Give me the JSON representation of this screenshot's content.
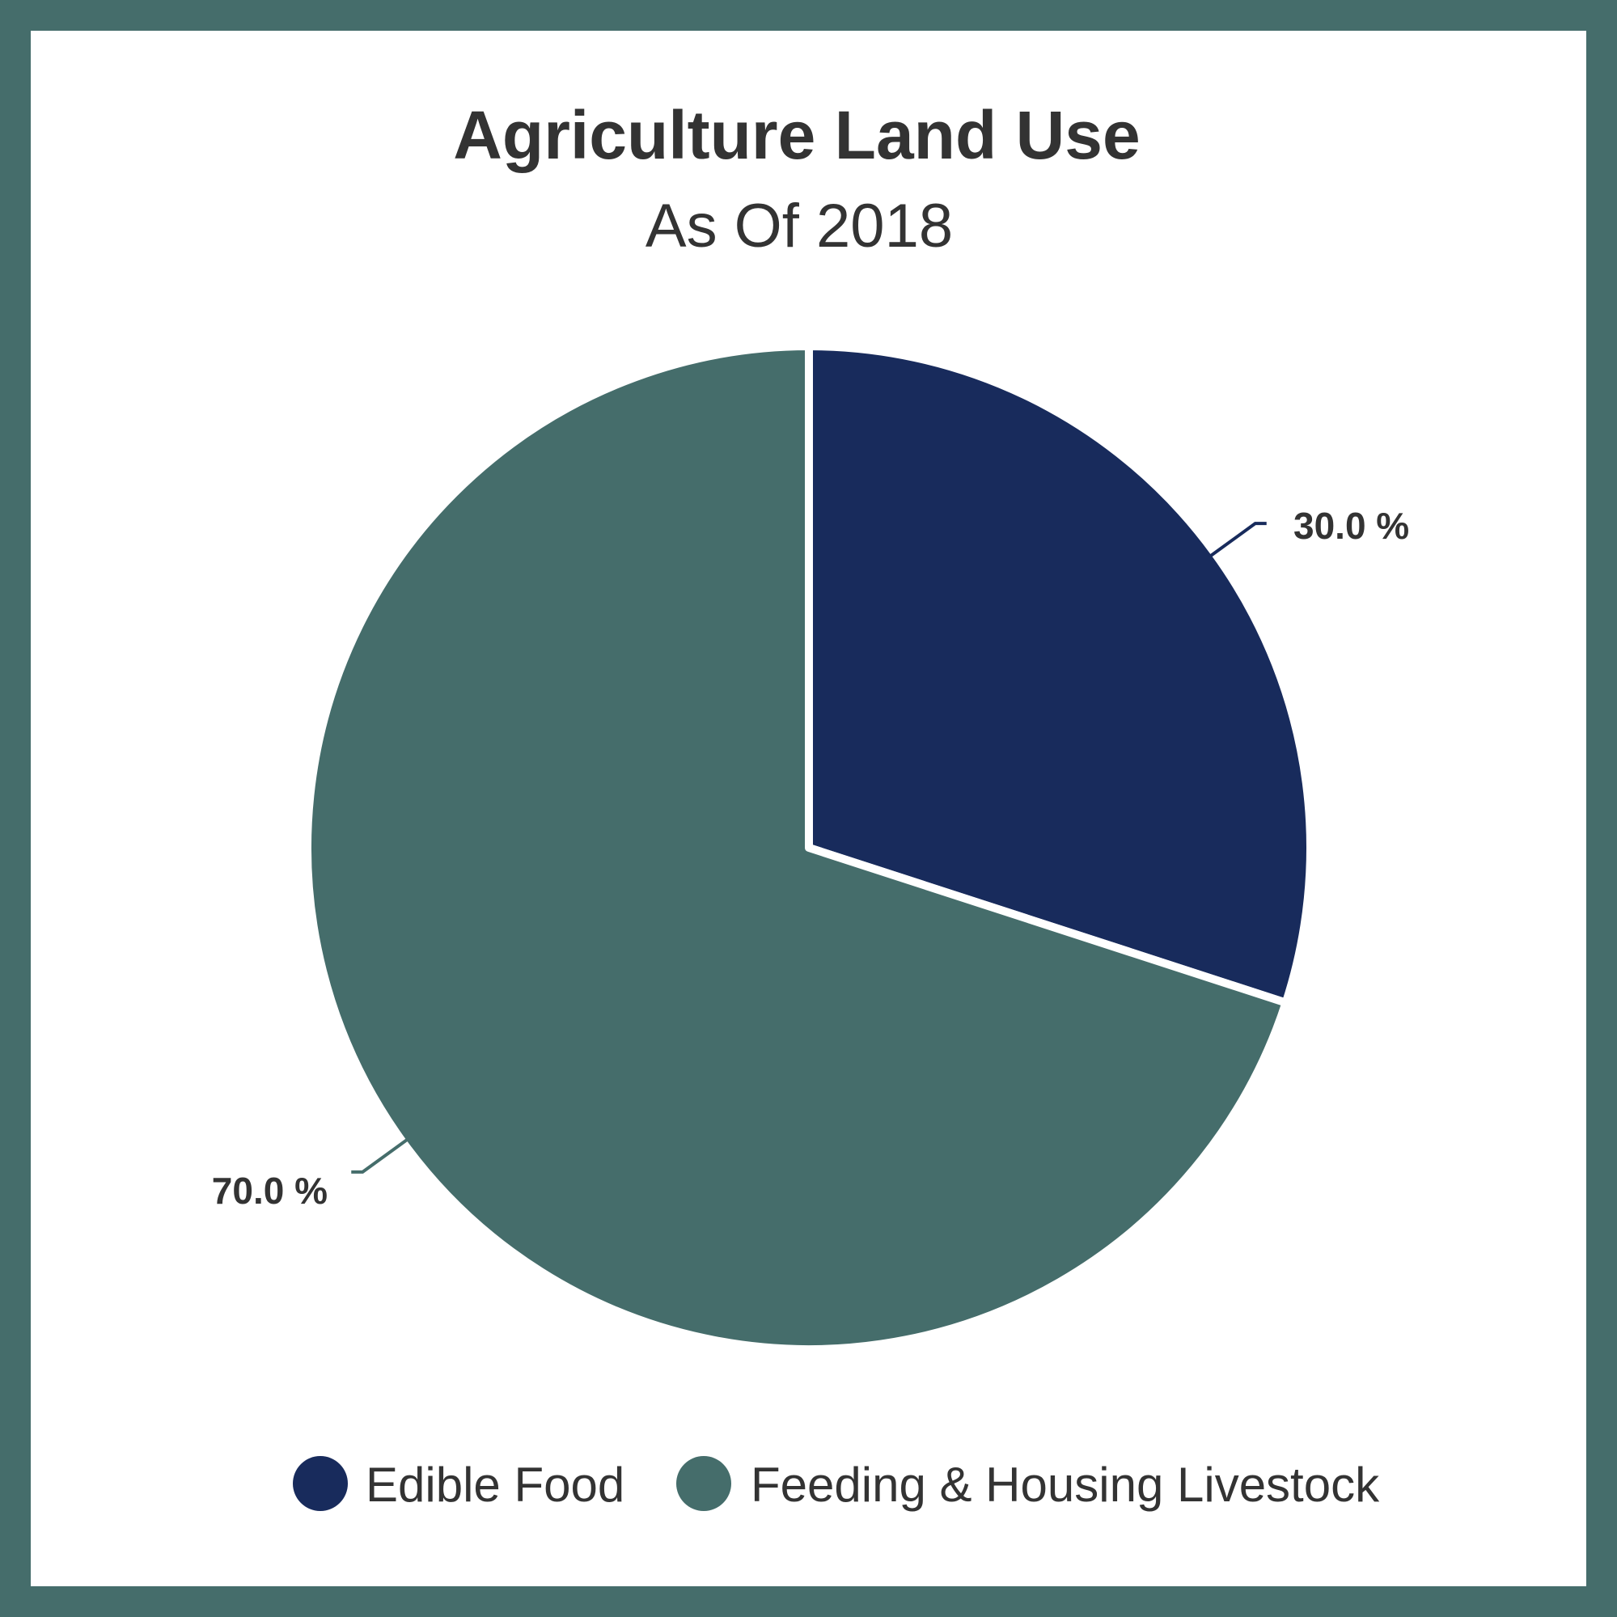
{
  "chart_data": {
    "type": "pie",
    "title": "Agriculture Land Use",
    "subtitle": "As Of 2018",
    "slices": [
      {
        "name": "Edible Food",
        "value": 30.0,
        "label": "30.0 %",
        "color": "#182b5c"
      },
      {
        "name": "Feeding & Housing Livestock",
        "value": 70.0,
        "label": "70.0 %",
        "color": "#456d6b"
      }
    ],
    "legend_position": "bottom"
  },
  "colors": {
    "frame": "#456d6b",
    "background": "#ffffff",
    "text": "#333333"
  }
}
